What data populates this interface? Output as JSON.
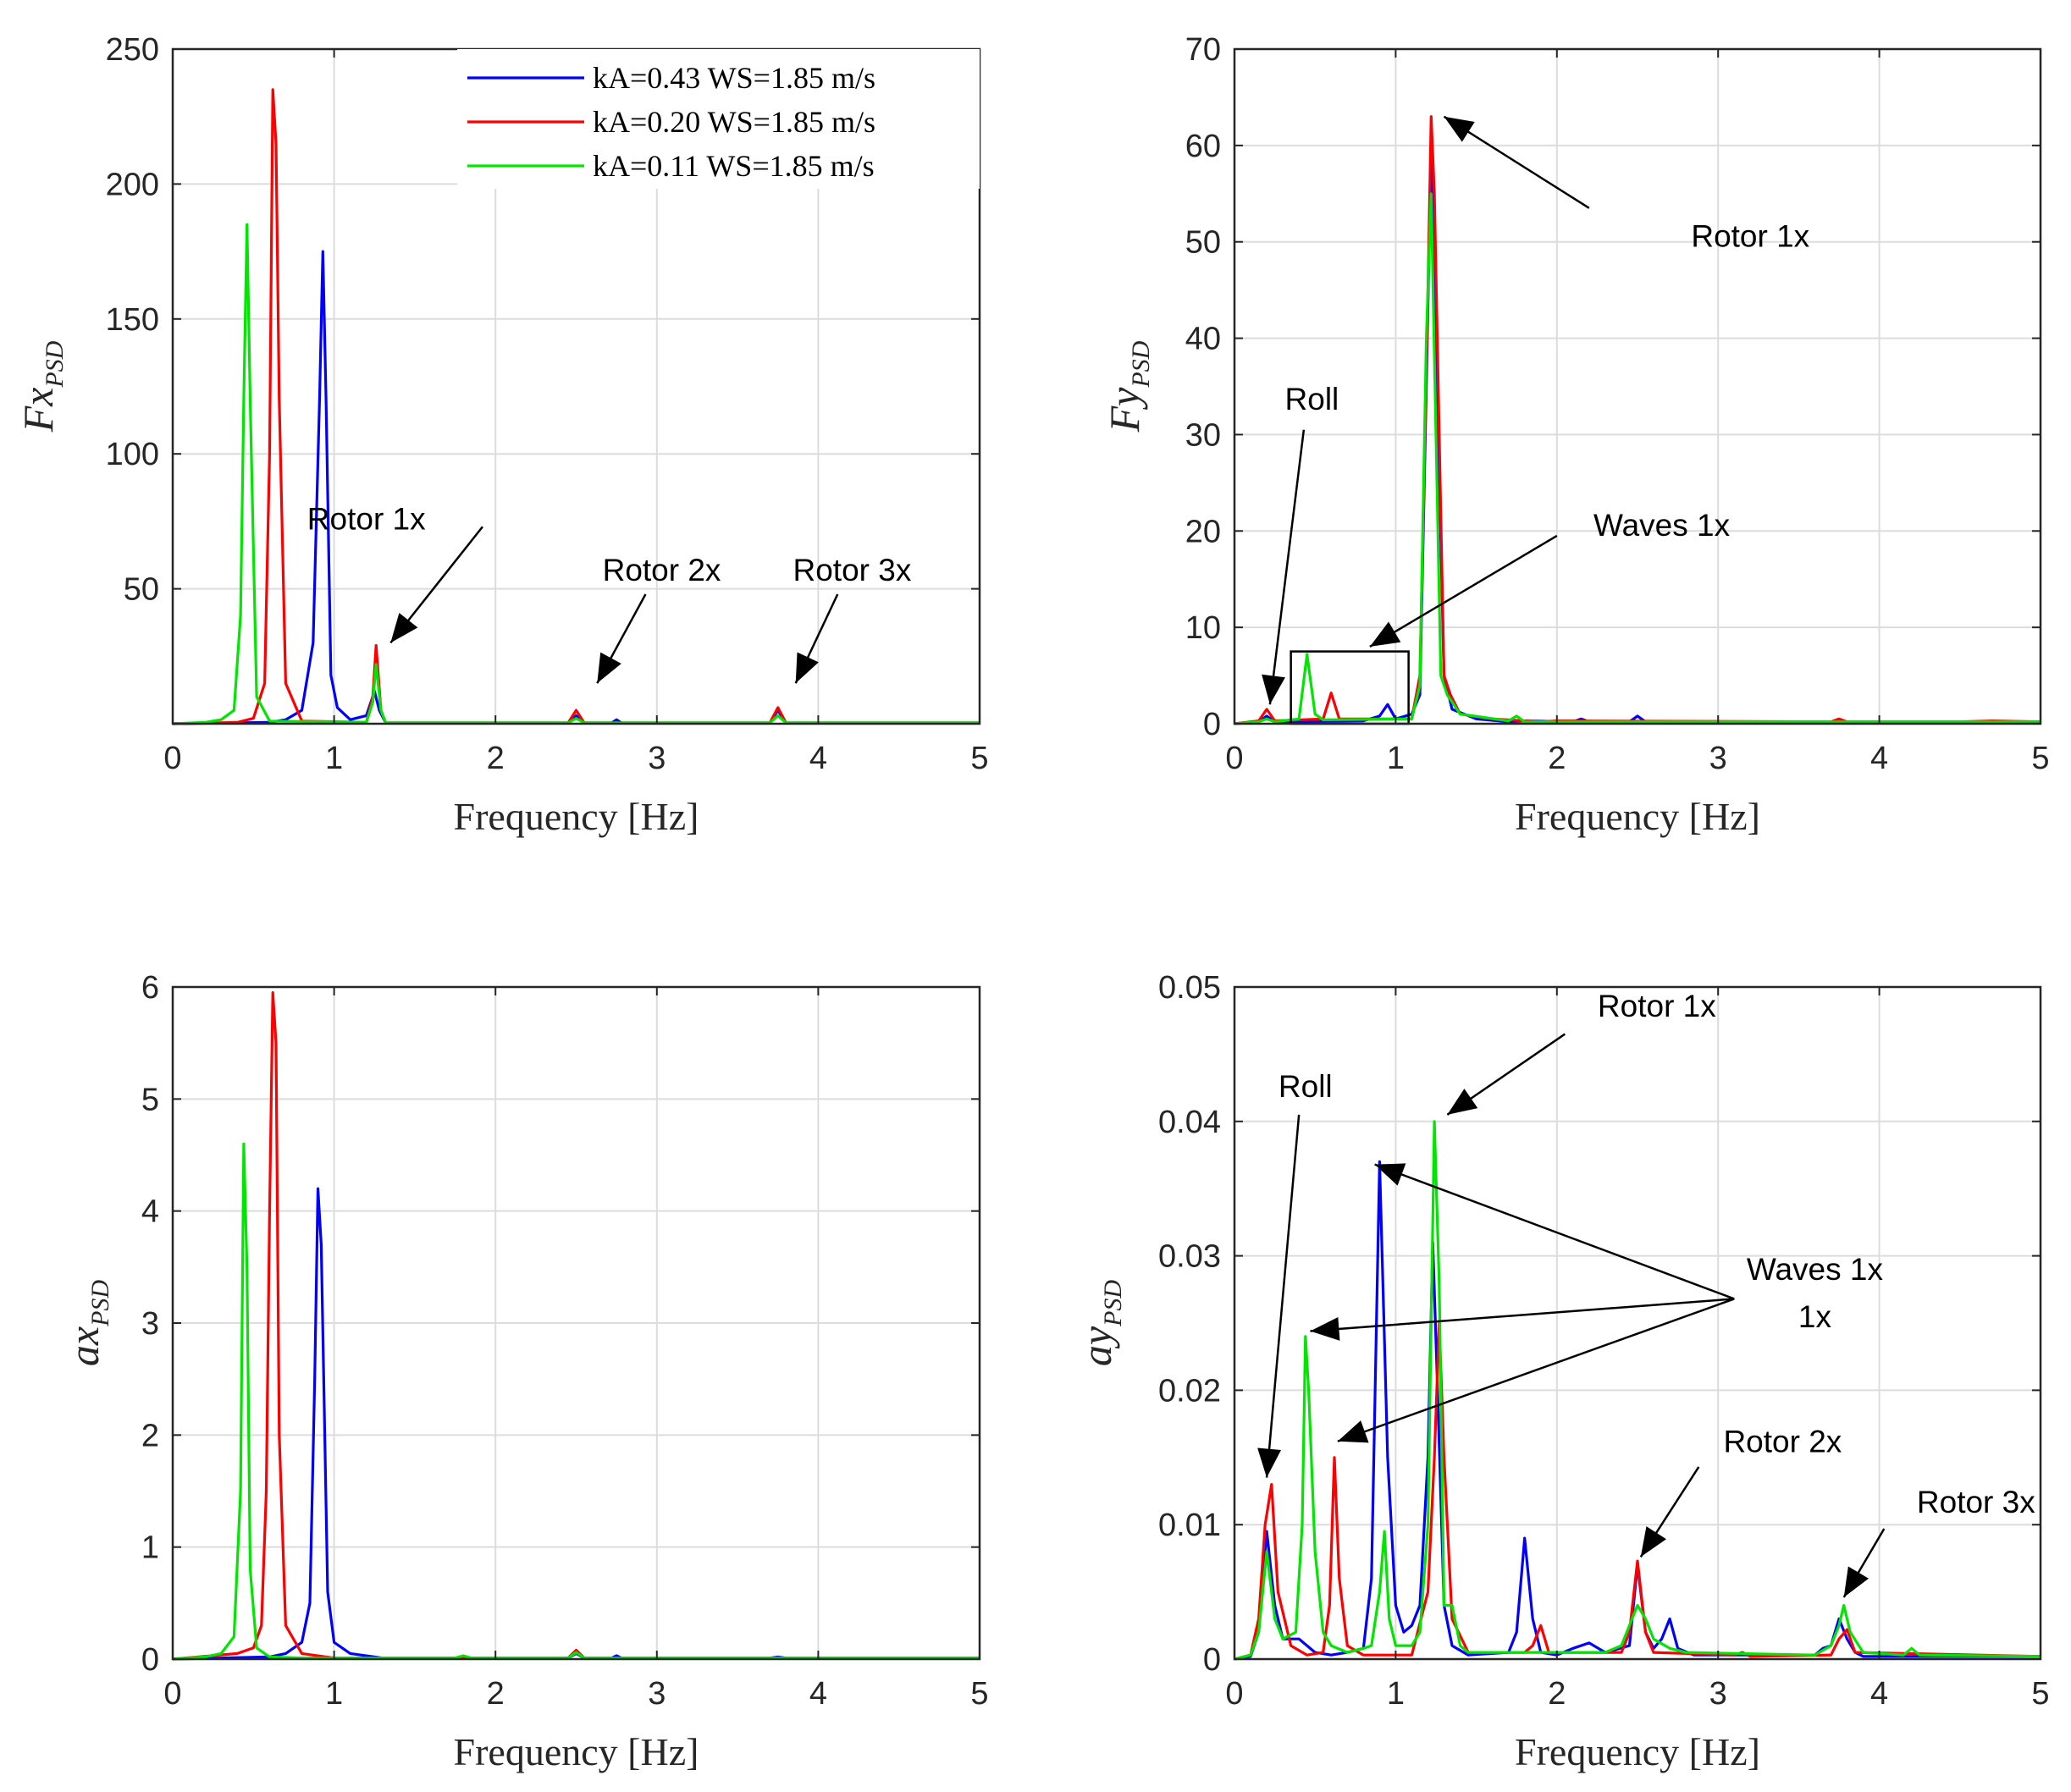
{
  "colors": {
    "blue": "#0000ff",
    "red": "#ff0000",
    "green": "#00e600",
    "grid": "#dcdcdc",
    "axis": "#262626"
  },
  "legend": [
    "kA=0.43 WS=1.85 m/s",
    "kA=0.20 WS=1.85 m/s",
    "kA=0.11 WS=1.85 m/s"
  ],
  "chart_data": [
    {
      "id": "fx",
      "type": "line",
      "xlabel": "Frequency [Hz]",
      "ylabel_main": "Fx",
      "ylabel_sub": "PSD",
      "xlim": [
        0,
        5
      ],
      "ylim": [
        0,
        250
      ],
      "xticks": [
        "0",
        "1",
        "2",
        "3",
        "4",
        "5"
      ],
      "yticks": [
        "50",
        "100",
        "150",
        "200",
        "250"
      ],
      "series": [
        {
          "name": "kA=0.43 WS=1.85 m/s",
          "color": "blue",
          "x": [
            0,
            0.6,
            0.7,
            0.8,
            0.87,
            0.91,
            0.93,
            0.95,
            0.98,
            1.02,
            1.1,
            1.2,
            1.25,
            1.28,
            1.32,
            2.45,
            2.5,
            2.55,
            2.72,
            2.75,
            2.78,
            3.7,
            3.75,
            3.8,
            5
          ],
          "y": [
            0,
            0.5,
            1.5,
            5,
            30,
            120,
            175,
            120,
            18,
            6,
            1.5,
            3,
            12,
            5,
            0.3,
            0.3,
            3,
            0.3,
            0.3,
            1.5,
            0.3,
            0.3,
            5,
            0.3,
            0.3
          ]
        },
        {
          "name": "kA=0.20 WS=1.85 m/s",
          "color": "red",
          "x": [
            0,
            0.4,
            0.5,
            0.57,
            0.6,
            0.62,
            0.64,
            0.66,
            0.7,
            0.8,
            1.2,
            1.24,
            1.26,
            1.29,
            1.32,
            2.45,
            2.5,
            2.55,
            3.7,
            3.75,
            3.8,
            5
          ],
          "y": [
            0,
            0.5,
            2,
            15,
            100,
            235,
            215,
            120,
            15,
            1,
            0.5,
            10,
            29,
            5,
            0.3,
            0.3,
            5,
            0.3,
            0.3,
            6,
            0.3,
            0.3
          ]
        },
        {
          "name": "kA=0.11 WS=1.85 m/s",
          "color": "green",
          "x": [
            0,
            0.2,
            0.3,
            0.38,
            0.42,
            0.44,
            0.46,
            0.48,
            0.52,
            0.6,
            1.2,
            1.24,
            1.26,
            1.29,
            1.32,
            2.45,
            2.5,
            2.55,
            3.7,
            3.75,
            3.8,
            4.2,
            5
          ],
          "y": [
            0,
            0.5,
            1.5,
            5,
            40,
            120,
            185,
            120,
            10,
            1,
            0.5,
            8,
            22,
            5,
            0.3,
            0.3,
            2,
            0.3,
            0.3,
            3,
            0.3,
            0.3,
            0.3
          ]
        }
      ],
      "annotations": [
        {
          "label": "Rotor 1x",
          "text_x": 1.2,
          "text_y": 72,
          "from": [
            1.92,
            73
          ],
          "to": [
            1.35,
            30
          ]
        },
        {
          "label": "Rotor 2x",
          "text_x": 3.03,
          "text_y": 53,
          "from": [
            2.93,
            48
          ],
          "to": [
            2.63,
            15
          ]
        },
        {
          "label": "Rotor 3x",
          "text_x": 4.21,
          "text_y": 53,
          "from": [
            4.12,
            48
          ],
          "to": [
            3.86,
            15
          ]
        }
      ]
    },
    {
      "id": "fy",
      "type": "line",
      "xlabel": "Frequency [Hz]",
      "ylabel_main": "Fy",
      "ylabel_sub": "PSD",
      "xlim": [
        0,
        5
      ],
      "ylim": [
        0,
        70
      ],
      "xticks": [
        "0",
        "1",
        "2",
        "3",
        "4",
        "5"
      ],
      "yticks": [
        "0",
        "10",
        "20",
        "30",
        "40",
        "50",
        "60",
        "70"
      ],
      "series": [
        {
          "name": "kA=0.43 WS=1.85 m/s",
          "color": "blue",
          "x": [
            0,
            0.15,
            0.2,
            0.25,
            0.8,
            0.9,
            0.95,
            1.0,
            1.1,
            1.15,
            1.19,
            1.22,
            1.25,
            1.3,
            1.35,
            1.5,
            1.7,
            1.8,
            2.1,
            2.15,
            2.2,
            2.45,
            2.5,
            2.55,
            5
          ],
          "y": [
            0,
            0.2,
            0.8,
            0.2,
            0.3,
            0.8,
            2,
            0.5,
            1,
            3,
            35,
            60,
            40,
            5,
            1.5,
            0.5,
            0.2,
            0.3,
            0.2,
            0.5,
            0.2,
            0.2,
            0.8,
            0.2,
            0.2
          ]
        },
        {
          "name": "kA=0.20 WS=1.85 m/s",
          "color": "red",
          "x": [
            0,
            0.15,
            0.2,
            0.25,
            0.55,
            0.6,
            0.65,
            1.1,
            1.15,
            1.2,
            1.22,
            1.24,
            1.27,
            1.3,
            1.34,
            1.4,
            1.6,
            1.9,
            2.0,
            3.7,
            3.75,
            3.8,
            4.5,
            4.7,
            5
          ],
          "y": [
            0,
            0.3,
            1.5,
            0.3,
            0.5,
            3.2,
            0.5,
            0.5,
            5,
            45,
            63,
            55,
            30,
            5,
            3,
            1,
            0.5,
            0.2,
            0.3,
            0.2,
            0.5,
            0.2,
            0.2,
            0.3,
            0.2
          ]
        },
        {
          "name": "kA=0.11 WS=1.85 m/s",
          "color": "green",
          "x": [
            0,
            0.15,
            0.2,
            0.25,
            0.4,
            0.45,
            0.5,
            0.55,
            1.1,
            1.15,
            1.19,
            1.22,
            1.25,
            1.28,
            1.32,
            1.4,
            1.7,
            1.75,
            1.8,
            5
          ],
          "y": [
            0,
            0.2,
            0.5,
            0.2,
            0.5,
            7.2,
            1,
            0.4,
            0.5,
            4,
            40,
            55,
            30,
            5,
            3,
            1,
            0.3,
            0.8,
            0.2,
            0.2
          ]
        }
      ],
      "annotations": [
        {
          "label": "Rotor 1x",
          "text_x": 3.2,
          "text_y": 49.5,
          "from": [
            2.2,
            53.5
          ],
          "to": [
            1.3,
            63
          ]
        },
        {
          "label": "Roll",
          "text_x": 0.48,
          "text_y": 32.6,
          "from": [
            0.43,
            30.5
          ],
          "to": [
            0.22,
            2
          ]
        },
        {
          "label": "Waves 1x",
          "text_x": 2.65,
          "text_y": 19.5,
          "from": [
            2.0,
            19.5
          ],
          "to": [
            0.84,
            8
          ]
        }
      ],
      "box": [
        0.35,
        0,
        1.08,
        7.5
      ]
    },
    {
      "id": "ax",
      "type": "line",
      "xlabel": "Frequency [Hz]",
      "ylabel_main": "ax",
      "ylabel_sub": "PSD",
      "xlim": [
        0,
        5
      ],
      "ylim": [
        0,
        6
      ],
      "xticks": [
        "0",
        "1",
        "2",
        "3",
        "4",
        "5"
      ],
      "yticks": [
        "0",
        "1",
        "2",
        "3",
        "4",
        "5",
        "6"
      ],
      "series": [
        {
          "name": "kA=0.43 WS=1.85 m/s",
          "color": "blue",
          "x": [
            0,
            0.6,
            0.7,
            0.8,
            0.85,
            0.88,
            0.9,
            0.92,
            0.96,
            1.0,
            1.1,
            1.3,
            2.45,
            2.5,
            2.55,
            2.72,
            2.75,
            2.78,
            3.7,
            3.75,
            3.8,
            5
          ],
          "y": [
            0,
            0.02,
            0.05,
            0.15,
            0.5,
            2.5,
            4.2,
            3.7,
            0.6,
            0.15,
            0.05,
            0.01,
            0.01,
            0.05,
            0.01,
            0.01,
            0.03,
            0.01,
            0.01,
            0.02,
            0.01,
            0.01
          ]
        },
        {
          "name": "kA=0.20 WS=1.85 m/s",
          "color": "red",
          "x": [
            0,
            0.4,
            0.5,
            0.55,
            0.58,
            0.6,
            0.62,
            0.64,
            0.66,
            0.7,
            0.8,
            1.0,
            2.45,
            2.5,
            2.55,
            5
          ],
          "y": [
            0,
            0.05,
            0.1,
            0.3,
            1.5,
            4,
            5.95,
            5.5,
            2,
            0.3,
            0.05,
            0.01,
            0.01,
            0.08,
            0.01,
            0.01
          ]
        },
        {
          "name": "kA=0.11 WS=1.85 m/s",
          "color": "green",
          "x": [
            0,
            0.2,
            0.3,
            0.38,
            0.42,
            0.44,
            0.46,
            0.48,
            0.52,
            0.6,
            0.8,
            1.75,
            1.8,
            1.85,
            2.45,
            2.5,
            2.55,
            5
          ],
          "y": [
            0,
            0.02,
            0.05,
            0.2,
            1.5,
            4.6,
            3.5,
            0.8,
            0.1,
            0.02,
            0.01,
            0.01,
            0.03,
            0.01,
            0.01,
            0.06,
            0.01,
            0.01
          ]
        }
      ],
      "annotations": []
    },
    {
      "id": "ay",
      "type": "line",
      "xlabel": "Frequency [Hz]",
      "ylabel_main": "ay",
      "ylabel_sub": "PSD",
      "xlim": [
        0,
        5
      ],
      "ylim": [
        0,
        0.05
      ],
      "xticks": [
        "0",
        "1",
        "2",
        "3",
        "4",
        "5"
      ],
      "yticks": [
        "0",
        "0.01",
        "0.02",
        "0.03",
        "0.04",
        "0.05"
      ],
      "series": [
        {
          "name": "kA=0.43 WS=1.85 m/s",
          "color": "blue",
          "x": [
            0,
            0.1,
            0.15,
            0.2,
            0.25,
            0.3,
            0.4,
            0.5,
            0.6,
            0.7,
            0.8,
            0.85,
            0.9,
            0.95,
            1.0,
            1.05,
            1.1,
            1.15,
            1.2,
            1.23,
            1.26,
            1.3,
            1.35,
            1.45,
            1.7,
            1.75,
            1.8,
            1.85,
            1.9,
            2.0,
            2.1,
            2.2,
            2.3,
            2.45,
            2.5,
            2.55,
            2.6,
            2.65,
            2.7,
            2.75,
            2.85,
            3.6,
            3.65,
            3.7,
            3.75,
            3.8,
            3.85,
            3.9,
            5
          ],
          "y": [
            0,
            0.0002,
            0.002,
            0.0095,
            0.004,
            0.0015,
            0.0015,
            0.0005,
            0.0003,
            0.0005,
            0.0008,
            0.006,
            0.037,
            0.015,
            0.004,
            0.002,
            0.0025,
            0.004,
            0.015,
            0.031,
            0.02,
            0.004,
            0.001,
            0.0003,
            0.0005,
            0.002,
            0.009,
            0.003,
            0.0005,
            0.0003,
            0.0008,
            0.0012,
            0.0005,
            0.001,
            0.007,
            0.002,
            0.0008,
            0.0015,
            0.003,
            0.0008,
            0.0003,
            0.0003,
            0.0008,
            0.001,
            0.003,
            0.0015,
            0.0005,
            0.0002,
            0.0002
          ]
        },
        {
          "name": "kA=0.20 WS=1.85 m/s",
          "color": "red",
          "x": [
            0,
            0.1,
            0.15,
            0.19,
            0.23,
            0.27,
            0.35,
            0.45,
            0.55,
            0.59,
            0.62,
            0.65,
            0.7,
            0.8,
            1.1,
            1.2,
            1.24,
            1.27,
            1.3,
            1.35,
            1.45,
            1.8,
            1.85,
            1.9,
            1.95,
            2.4,
            2.45,
            2.5,
            2.55,
            2.6,
            3.1,
            3.15,
            3.2,
            3.7,
            3.75,
            3.8,
            3.85,
            5
          ],
          "y": [
            0,
            0.0003,
            0.003,
            0.01,
            0.013,
            0.005,
            0.001,
            0.0003,
            0.0005,
            0.004,
            0.015,
            0.006,
            0.001,
            0.0003,
            0.0003,
            0.005,
            0.015,
            0.025,
            0.015,
            0.003,
            0.0005,
            0.0005,
            0.001,
            0.0025,
            0.0005,
            0.0005,
            0.002,
            0.0073,
            0.002,
            0.0005,
            0.0003,
            0.0005,
            0.0002,
            0.0003,
            0.0015,
            0.0022,
            0.0005,
            0.0002
          ]
        },
        {
          "name": "kA=0.11 WS=1.85 m/s",
          "color": "green",
          "x": [
            0,
            0.1,
            0.15,
            0.2,
            0.25,
            0.3,
            0.38,
            0.42,
            0.44,
            0.46,
            0.5,
            0.55,
            0.6,
            0.7,
            0.8,
            0.85,
            0.9,
            0.93,
            0.96,
            1.0,
            1.1,
            1.15,
            1.2,
            1.24,
            1.27,
            1.3,
            1.35,
            1.4,
            1.45,
            2.3,
            2.4,
            2.45,
            2.5,
            2.55,
            2.6,
            2.7,
            2.8,
            3.6,
            3.7,
            3.75,
            3.78,
            3.82,
            3.9,
            4.15,
            4.2,
            4.25,
            5
          ],
          "y": [
            0,
            0.0003,
            0.002,
            0.008,
            0.003,
            0.0015,
            0.002,
            0.01,
            0.024,
            0.02,
            0.008,
            0.002,
            0.001,
            0.0005,
            0.0008,
            0.001,
            0.005,
            0.0095,
            0.003,
            0.001,
            0.001,
            0.002,
            0.01,
            0.04,
            0.028,
            0.004,
            0.004,
            0.001,
            0.0005,
            0.0005,
            0.001,
            0.0025,
            0.004,
            0.003,
            0.0015,
            0.0008,
            0.0005,
            0.0003,
            0.001,
            0.0025,
            0.004,
            0.002,
            0.0005,
            0.0003,
            0.0008,
            0.0003,
            0.0002
          ]
        }
      ],
      "annotations": [
        {
          "label": "Rotor 1x",
          "text_x": 2.62,
          "text_y": 0.0478,
          "from": [
            2.05,
            0.0465
          ],
          "to": [
            1.32,
            0.0405
          ]
        },
        {
          "label": "Roll",
          "text_x": 0.44,
          "text_y": 0.0418,
          "from": [
            0.4,
            0.0405
          ],
          "to": [
            0.2,
            0.0135
          ]
        },
        {
          "label": "Waves 1x",
          "text_x": 3.6,
          "text_y": 0.0282,
          "from": [
            3.1,
            0.0268
          ],
          "to": [
            0.87,
            0.0368
          ]
        },
        {
          "label": "1x",
          "text_x": 3.6,
          "text_y": 0.0247,
          "from": null,
          "to": null
        },
        {
          "label": "",
          "text_x": 0,
          "text_y": 0,
          "from": [
            3.1,
            0.0268
          ],
          "to": [
            0.47,
            0.0244
          ]
        },
        {
          "label": "",
          "text_x": 0,
          "text_y": 0,
          "from": [
            3.1,
            0.0268
          ],
          "to": [
            0.64,
            0.0162
          ]
        },
        {
          "label": "Rotor 2x",
          "text_x": 3.4,
          "text_y": 0.0154,
          "from": [
            2.88,
            0.0143
          ],
          "to": [
            2.52,
            0.0076
          ]
        },
        {
          "label": "Rotor 3x",
          "text_x": 4.6,
          "text_y": 0.0109,
          "from": [
            4.03,
            0.0097
          ],
          "to": [
            3.78,
            0.0046
          ]
        }
      ]
    }
  ]
}
